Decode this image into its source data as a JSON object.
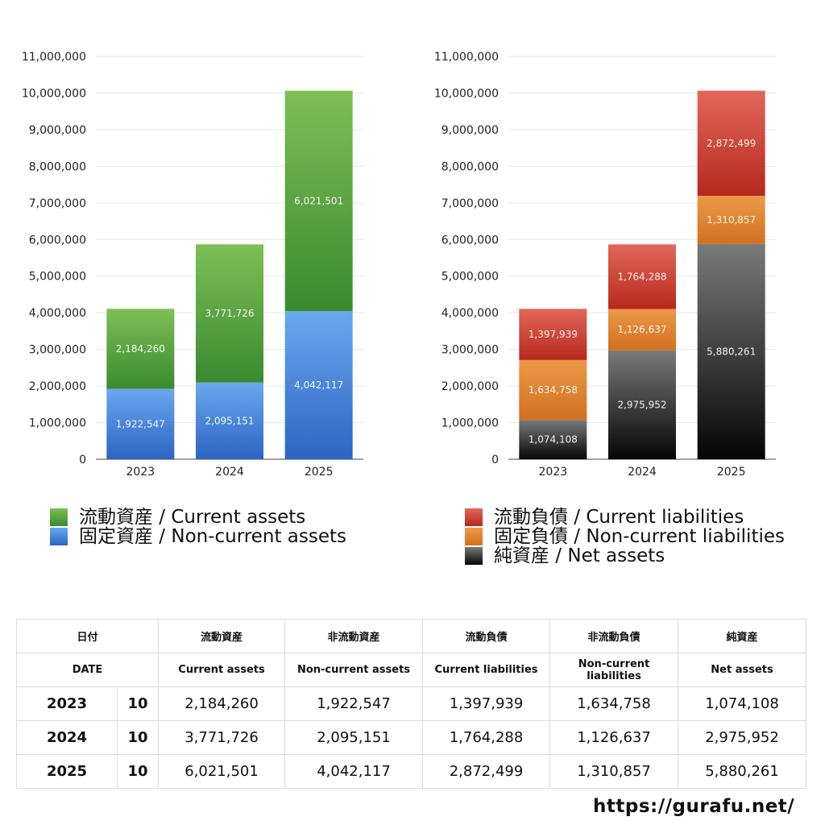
{
  "chart_data": [
    {
      "type": "bar",
      "stacked": true,
      "categories": [
        "2023",
        "2024",
        "2025"
      ],
      "ylim": [
        0,
        11000000
      ],
      "yticks": [
        "0",
        "1,000,000",
        "2,000,000",
        "3,000,000",
        "4,000,000",
        "5,000,000",
        "6,000,000",
        "7,000,000",
        "8,000,000",
        "9,000,000",
        "10,000,000",
        "11,000,000"
      ],
      "grid": true,
      "legend_position": "bottom",
      "series": [
        {
          "name": "固定資産 / Non-current assets",
          "values": [
            1922547,
            2095151,
            4042117
          ],
          "labels": [
            "1,922,547",
            "2,095,151",
            "4,042,117"
          ],
          "color_top": "#6aa8ef",
          "color_bottom": "#2d64c4"
        },
        {
          "name": "流動資産 / Current assets",
          "values": [
            2184260,
            3771726,
            6021501
          ],
          "labels": [
            "2,184,260",
            "3,771,726",
            "6,021,501"
          ],
          "color_top": "#7dbf55",
          "color_bottom": "#3a8a30"
        }
      ]
    },
    {
      "type": "bar",
      "stacked": true,
      "categories": [
        "2023",
        "2024",
        "2025"
      ],
      "ylim": [
        0,
        11000000
      ],
      "yticks": [
        "0",
        "1,000,000",
        "2,000,000",
        "3,000,000",
        "4,000,000",
        "5,000,000",
        "6,000,000",
        "7,000,000",
        "8,000,000",
        "9,000,000",
        "10,000,000",
        "11,000,000"
      ],
      "grid": true,
      "legend_position": "bottom",
      "series": [
        {
          "name": "純資産 / Net assets",
          "values": [
            1074108,
            2975952,
            5880261
          ],
          "labels": [
            "1,074,108",
            "2,975,952",
            "5,880,261"
          ],
          "color_top": "#7a7a7a",
          "color_bottom": "#050505"
        },
        {
          "name": "固定負債 / Non-current liabilities",
          "values": [
            1634758,
            1126637,
            1310857
          ],
          "labels": [
            "1,634,758",
            "1,126,637",
            "1,310,857"
          ],
          "color_top": "#eb9a48",
          "color_bottom": "#d2701f"
        },
        {
          "name": "流動負債 / Current liabilities",
          "values": [
            1397939,
            1764288,
            2872499
          ],
          "labels": [
            "1,397,939",
            "1,764,288",
            "2,872,499"
          ],
          "color_top": "#e0685a",
          "color_bottom": "#b8281c"
        }
      ]
    }
  ],
  "legend_left": [
    {
      "label": "流動資産 / Current assets",
      "color": "#58a945"
    },
    {
      "label": "固定資産 / Non-current assets",
      "color": "#4a8ae0"
    }
  ],
  "legend_right": [
    {
      "label": "流動負債 / Current liabilities",
      "color": "#d0473a"
    },
    {
      "label": "固定負債 / Non-current liabilities",
      "color": "#e5852f"
    },
    {
      "label": "純資産 / Net assets",
      "color": "#3a3a3a"
    }
  ],
  "table": {
    "header_jp": [
      "日付",
      "流動資産",
      "非流動資産",
      "流動負債",
      "非流動負債",
      "純資産"
    ],
    "header_en": [
      "DATE",
      "Current assets",
      "Non-current assets",
      "Current liabilities",
      "Non-current liabilities",
      "Net assets"
    ],
    "rows": [
      {
        "year": "2023",
        "month": "10",
        "values": [
          "2,184,260",
          "1,922,547",
          "1,397,939",
          "1,634,758",
          "1,074,108"
        ]
      },
      {
        "year": "2024",
        "month": "10",
        "values": [
          "3,771,726",
          "2,095,151",
          "1,764,288",
          "1,126,637",
          "2,975,952"
        ]
      },
      {
        "year": "2025",
        "month": "10",
        "values": [
          "6,021,501",
          "4,042,117",
          "2,872,499",
          "1,310,857",
          "5,880,261"
        ]
      }
    ]
  },
  "footer": {
    "url": "https://gurafu.net/"
  }
}
